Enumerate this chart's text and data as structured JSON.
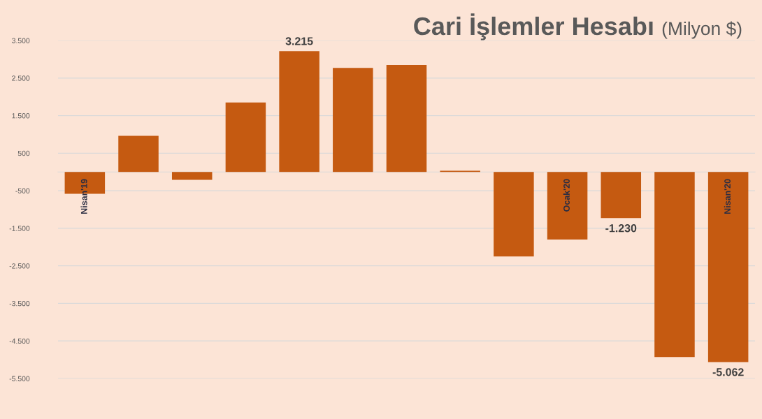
{
  "chart_data": {
    "type": "bar",
    "title": "Cari İşlemler Hesabı",
    "subtitle": "(Milyon $)",
    "categories": [
      "Nisan'19",
      null,
      null,
      null,
      null,
      null,
      null,
      null,
      null,
      "Ocak'20",
      null,
      null,
      "Nisan'20"
    ],
    "values": [
      -580,
      960,
      -210,
      1850,
      3215,
      2770,
      2850,
      30,
      -2250,
      -1800,
      -1230,
      -4930,
      -5062
    ],
    "color": "#c55a11",
    "value_labels": [
      null,
      null,
      null,
      null,
      "3.215",
      null,
      null,
      null,
      null,
      null,
      "-1.230",
      null,
      "-5.062"
    ],
    "ylim": [
      -5500,
      3500
    ],
    "yticks": [
      {
        "value": -5500,
        "label": "-5.500"
      },
      {
        "value": -4500,
        "label": "-4.500"
      },
      {
        "value": -3500,
        "label": "-3.500"
      },
      {
        "value": -2500,
        "label": "-2.500"
      },
      {
        "value": -1500,
        "label": "-1.500"
      },
      -500,
      500,
      {
        "value": 1500,
        "label": "1.500"
      },
      {
        "value": 2500,
        "label": "2.500"
      },
      {
        "value": 3500,
        "label": "3.500"
      }
    ],
    "grid": "y"
  }
}
